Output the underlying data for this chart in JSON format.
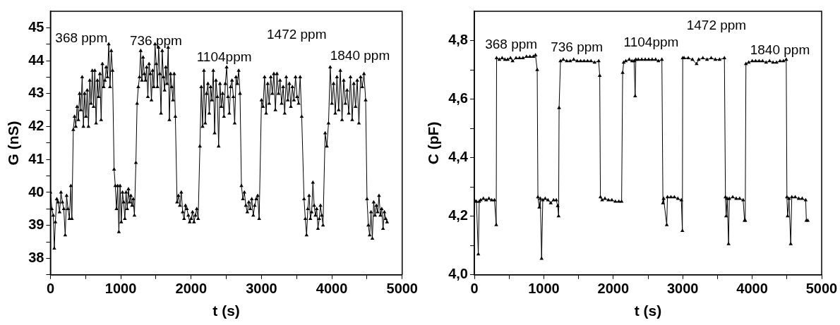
{
  "chart_data": [
    {
      "type": "line",
      "xlabel": "t (s)",
      "ylabel": "G (nS)",
      "marker": "triangle",
      "grid": false,
      "xlim": [
        0,
        5000
      ],
      "ylim": [
        37.5,
        45.5
      ],
      "xticks": [
        0,
        {
          "value": 500,
          "label": null
        },
        1000,
        {
          "value": 1500,
          "label": null
        },
        2000,
        {
          "value": 2500,
          "label": null
        },
        3000,
        {
          "value": 3500,
          "label": null
        },
        4000,
        {
          "value": 4500,
          "label": null
        },
        5000
      ],
      "yticks": [
        {
          "value": 37.5,
          "label": null
        },
        38,
        {
          "value": 38.5,
          "label": null
        },
        39,
        {
          "value": 39.5,
          "label": null
        },
        40,
        {
          "value": 40.5,
          "label": null
        },
        41,
        {
          "value": 41.5,
          "label": null
        },
        42,
        {
          "value": 42.5,
          "label": null
        },
        43,
        {
          "value": 43.5,
          "label": null
        },
        44,
        {
          "value": 44.5,
          "label": null
        },
        45
      ],
      "annotations": [
        "368 ppm",
        "736 ppm",
        "1104ppm",
        "1472 ppm",
        "1840 ppm"
      ],
      "series": [
        {
          "color": "#000000",
          "x": [
            0,
            20,
            40,
            55,
            70,
            90,
            110,
            130,
            150,
            170,
            190,
            210,
            230,
            250,
            270,
            290,
            305,
            325,
            343,
            361,
            379,
            397,
            415,
            433,
            451,
            469,
            487,
            505,
            523,
            541,
            559,
            577,
            595,
            613,
            631,
            649,
            667,
            685,
            703,
            721,
            739,
            757,
            775,
            793,
            811,
            829,
            847,
            865,
            883,
            905,
            922,
            939,
            956,
            973,
            990,
            1007,
            1024,
            1041,
            1058,
            1075,
            1092,
            1109,
            1126,
            1143,
            1160,
            1177,
            1194,
            1215,
            1232,
            1249,
            1266,
            1283,
            1300,
            1317,
            1334,
            1351,
            1368,
            1385,
            1402,
            1419,
            1436,
            1453,
            1470,
            1487,
            1504,
            1521,
            1538,
            1555,
            1572,
            1589,
            1606,
            1623,
            1640,
            1657,
            1674,
            1691,
            1708,
            1725,
            1742,
            1759,
            1776,
            1800,
            1820,
            1840,
            1860,
            1880,
            1900,
            1920,
            1940,
            1960,
            1980,
            2000,
            2020,
            2040,
            2060,
            2080,
            2100,
            2125,
            2144,
            2163,
            2182,
            2201,
            2220,
            2239,
            2258,
            2277,
            2296,
            2315,
            2334,
            2353,
            2372,
            2391,
            2410,
            2429,
            2448,
            2467,
            2486,
            2505,
            2524,
            2543,
            2562,
            2581,
            2600,
            2619,
            2638,
            2657,
            2676,
            2695,
            2715,
            2736,
            2757,
            2778,
            2799,
            2820,
            2841,
            2862,
            2883,
            2904,
            2925,
            2946,
            2967,
            3000,
            3022,
            3044,
            3066,
            3088,
            3110,
            3132,
            3154,
            3176,
            3198,
            3220,
            3242,
            3264,
            3286,
            3308,
            3330,
            3352,
            3374,
            3396,
            3418,
            3440,
            3462,
            3484,
            3506,
            3528,
            3550,
            3572,
            3605,
            3623,
            3641,
            3659,
            3677,
            3695,
            3713,
            3731,
            3749,
            3767,
            3785,
            3803,
            3821,
            3839,
            3857,
            3875,
            3905,
            3929,
            3953,
            3977,
            4001,
            4025,
            4049,
            4073,
            4097,
            4121,
            4145,
            4169,
            4193,
            4217,
            4241,
            4265,
            4289,
            4313,
            4337,
            4361,
            4385,
            4409,
            4433,
            4457,
            4481,
            4500,
            4519,
            4538,
            4557,
            4576,
            4595,
            4614,
            4633,
            4652,
            4671,
            4690,
            4709,
            4728,
            4747,
            4766,
            4785
          ],
          "values": [
            40.0,
            39.5,
            39.3,
            38.3,
            39.1,
            39.8,
            39.7,
            39.4,
            40.0,
            39.7,
            39.5,
            38.7,
            39.9,
            39.5,
            39.2,
            40.2,
            39.2,
            41.9,
            42.3,
            42.0,
            42.6,
            42.2,
            43.0,
            42.5,
            43.5,
            42.0,
            43.0,
            42.3,
            43.1,
            42.0,
            43.4,
            42.7,
            43.7,
            42.6,
            43.7,
            42.1,
            43.4,
            42.9,
            43.6,
            42.2,
            43.9,
            43.2,
            43.4,
            43.8,
            43.5,
            44.5,
            43.2,
            44.3,
            43.7,
            40.7,
            40.2,
            39.5,
            40.2,
            38.8,
            40.2,
            39.1,
            40.0,
            39.7,
            39.2,
            40.0,
            39.5,
            40.1,
            39.7,
            39.9,
            39.6,
            39.8,
            39.3,
            40.9,
            42.7,
            43.2,
            43.5,
            44.3,
            43.4,
            44.1,
            43.6,
            43.4,
            43.8,
            42.9,
            43.9,
            43.6,
            42.8,
            43.7,
            43.2,
            44.5,
            43.9,
            43.2,
            44.4,
            43.6,
            42.4,
            44.3,
            43.5,
            43.1,
            43.8,
            43.3,
            44.4,
            42.2,
            43.6,
            43.2,
            42.8,
            43.6,
            42.3,
            39.7,
            39.9,
            39.6,
            40.0,
            39.4,
            39.2,
            39.6,
            39.5,
            39.3,
            39.1,
            39.2,
            39.4,
            39.1,
            39.3,
            39.5,
            39.2,
            41.4,
            43.2,
            42.0,
            43.7,
            42.1,
            43.0,
            43.3,
            42.4,
            43.2,
            42.8,
            43.7,
            41.8,
            43.4,
            42.9,
            41.4,
            43.3,
            42.6,
            43.0,
            42.3,
            43.3,
            43.8,
            42.9,
            42.4,
            43.2,
            43.4,
            42.9,
            42.1,
            43.5,
            43.3,
            43.7,
            43.0,
            40.2,
            39.8,
            40.0,
            39.6,
            39.4,
            39.7,
            39.5,
            39.8,
            39.3,
            39.6,
            39.8,
            39.9,
            39.2,
            42.8,
            42.6,
            43.5,
            42.4,
            43.3,
            42.7,
            43.5,
            43.0,
            43.6,
            42.5,
            43.6,
            43.0,
            43.4,
            42.7,
            43.2,
            42.4,
            43.5,
            42.8,
            43.3,
            42.6,
            43.2,
            42.8,
            43.5,
            42.9,
            42.7,
            43.5,
            42.3,
            39.8,
            39.2,
            38.7,
            39.5,
            39.9,
            39.2,
            39.4,
            40.3,
            39.6,
            39.3,
            39.5,
            38.9,
            39.2,
            39.6,
            39.3,
            39.0,
            41.8,
            41.4,
            42.1,
            43.8,
            42.7,
            43.3,
            42.4,
            43.5,
            42.5,
            43.7,
            42.2,
            43.4,
            42.7,
            43.1,
            42.4,
            43.5,
            42.2,
            43.3,
            42.6,
            43.4,
            42.1,
            43.5,
            43.2,
            43.6,
            42.8,
            39.8,
            39.0,
            38.7,
            39.4,
            38.6,
            39.7,
            39.3,
            39.6,
            39.4,
            39.9,
            39.3,
            39.5,
            38.9,
            39.4,
            39.2,
            39.1
          ]
        }
      ]
    },
    {
      "type": "line",
      "xlabel": "t (s)",
      "ylabel": "C (pF)",
      "marker": "triangle",
      "grid": false,
      "xlim": [
        0,
        5000
      ],
      "ylim": [
        4.0,
        4.9
      ],
      "xticks": [
        0,
        {
          "value": 500,
          "label": null
        },
        1000,
        {
          "value": 1500,
          "label": null
        },
        2000,
        {
          "value": 2500,
          "label": null
        },
        3000,
        {
          "value": 3500,
          "label": null
        },
        4000,
        {
          "value": 4500,
          "label": null
        },
        5000
      ],
      "yticks": [
        {
          "value": 4.0,
          "label": "4,0"
        },
        {
          "value": 4.1,
          "label": null
        },
        {
          "value": 4.2,
          "label": "4,2"
        },
        {
          "value": 4.3,
          "label": null
        },
        {
          "value": 4.4,
          "label": "4,4"
        },
        {
          "value": 4.5,
          "label": null
        },
        {
          "value": 4.6,
          "label": "4,6"
        },
        {
          "value": 4.7,
          "label": null
        },
        {
          "value": 4.8,
          "label": "4,8"
        }
      ],
      "annotations": [
        "368 ppm",
        "736 ppm",
        "1104ppm",
        "1472 ppm",
        "1840 ppm"
      ],
      "series": [
        {
          "color": "#000000",
          "x": [
            0,
            30,
            57,
            70,
            90,
            130,
            170,
            210,
            250,
            290,
            315,
            320,
            360,
            400,
            440,
            480,
            520,
            550,
            600,
            650,
            700,
            750,
            800,
            850,
            880,
            905,
            915,
            935,
            950,
            968,
            985,
            1020,
            1060,
            1100,
            1140,
            1180,
            1200,
            1213,
            1220,
            1240,
            1280,
            1330,
            1380,
            1430,
            1480,
            1530,
            1580,
            1630,
            1680,
            1730,
            1790,
            1805,
            1815,
            1840,
            1880,
            1930,
            1980,
            2030,
            2080,
            2120,
            2135,
            2150,
            2180,
            2230,
            2270,
            2300,
            2315,
            2325,
            2360,
            2410,
            2460,
            2510,
            2560,
            2610,
            2650,
            2700,
            2715,
            2725,
            2770,
            2780,
            2830,
            2880,
            2930,
            2980,
            2995,
            3000,
            3020,
            3080,
            3140,
            3200,
            3230,
            3290,
            3350,
            3410,
            3470,
            3530,
            3600,
            3615,
            3625,
            3640,
            3660,
            3670,
            3720,
            3770,
            3820,
            3870,
            3890,
            3900,
            3910,
            3950,
            4000,
            4050,
            4100,
            4150,
            4200,
            4250,
            4300,
            4350,
            4400,
            4450,
            4490,
            4500,
            4510,
            4530,
            4555,
            4570,
            4620,
            4670,
            4720,
            4770,
            4780,
            4800
          ],
          "values": [
            4.255,
            4.25,
            4.07,
            4.25,
            4.255,
            4.26,
            4.255,
            4.26,
            4.255,
            4.255,
            4.17,
            4.74,
            4.735,
            4.74,
            4.735,
            4.735,
            4.74,
            4.73,
            4.74,
            4.74,
            4.74,
            4.745,
            4.745,
            4.745,
            4.75,
            4.7,
            4.265,
            4.23,
            4.26,
            4.055,
            4.255,
            4.26,
            4.255,
            4.245,
            4.255,
            4.255,
            4.235,
            4.2,
            4.57,
            4.73,
            4.735,
            4.73,
            4.73,
            4.735,
            4.73,
            4.73,
            4.73,
            4.73,
            4.73,
            4.725,
            4.73,
            4.68,
            4.265,
            4.255,
            4.26,
            4.255,
            4.255,
            4.25,
            4.25,
            4.25,
            4.69,
            4.725,
            4.73,
            4.735,
            4.73,
            4.73,
            4.61,
            4.735,
            4.735,
            4.735,
            4.735,
            4.735,
            4.735,
            4.735,
            4.73,
            4.735,
            4.245,
            4.26,
            4.17,
            4.265,
            4.265,
            4.265,
            4.26,
            4.255,
            4.15,
            4.74,
            4.74,
            4.74,
            4.735,
            4.72,
            4.735,
            4.74,
            4.735,
            4.74,
            4.735,
            4.735,
            4.74,
            4.265,
            4.2,
            4.26,
            4.105,
            4.26,
            4.265,
            4.26,
            4.26,
            4.255,
            4.185,
            4.185,
            4.72,
            4.725,
            4.73,
            4.73,
            4.73,
            4.73,
            4.725,
            4.73,
            4.725,
            4.725,
            4.73,
            4.73,
            4.735,
            4.265,
            4.2,
            4.26,
            4.105,
            4.265,
            4.265,
            4.26,
            4.26,
            4.255,
            4.185,
            4.185
          ]
        }
      ]
    }
  ]
}
